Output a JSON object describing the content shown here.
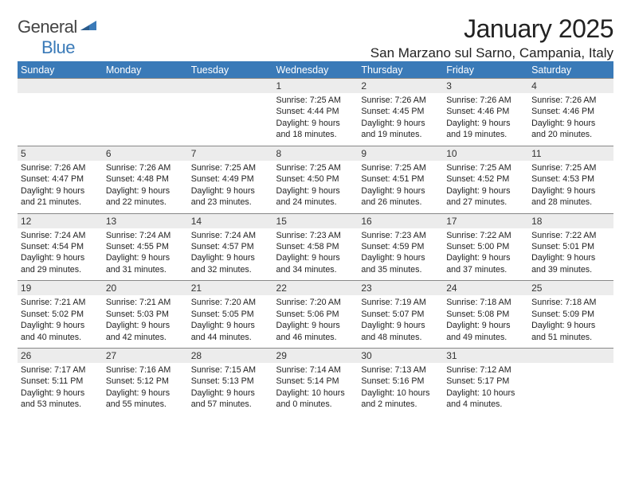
{
  "logo": {
    "text1": "General",
    "text2": "Blue"
  },
  "title": "January 2025",
  "location": "San Marzano sul Sarno, Campania, Italy",
  "colors": {
    "brand": "#3a7ab8",
    "daynum_bg": "#ececec",
    "text": "#222222",
    "logo_gray": "#444444"
  },
  "dow": [
    "Sunday",
    "Monday",
    "Tuesday",
    "Wednesday",
    "Thursday",
    "Friday",
    "Saturday"
  ],
  "weeks": [
    [
      null,
      null,
      null,
      {
        "n": "1",
        "sr": "7:25 AM",
        "ss": "4:44 PM",
        "dh": "9",
        "dm": "18"
      },
      {
        "n": "2",
        "sr": "7:26 AM",
        "ss": "4:45 PM",
        "dh": "9",
        "dm": "19"
      },
      {
        "n": "3",
        "sr": "7:26 AM",
        "ss": "4:46 PM",
        "dh": "9",
        "dm": "19"
      },
      {
        "n": "4",
        "sr": "7:26 AM",
        "ss": "4:46 PM",
        "dh": "9",
        "dm": "20"
      }
    ],
    [
      {
        "n": "5",
        "sr": "7:26 AM",
        "ss": "4:47 PM",
        "dh": "9",
        "dm": "21"
      },
      {
        "n": "6",
        "sr": "7:26 AM",
        "ss": "4:48 PM",
        "dh": "9",
        "dm": "22"
      },
      {
        "n": "7",
        "sr": "7:25 AM",
        "ss": "4:49 PM",
        "dh": "9",
        "dm": "23"
      },
      {
        "n": "8",
        "sr": "7:25 AM",
        "ss": "4:50 PM",
        "dh": "9",
        "dm": "24"
      },
      {
        "n": "9",
        "sr": "7:25 AM",
        "ss": "4:51 PM",
        "dh": "9",
        "dm": "26"
      },
      {
        "n": "10",
        "sr": "7:25 AM",
        "ss": "4:52 PM",
        "dh": "9",
        "dm": "27"
      },
      {
        "n": "11",
        "sr": "7:25 AM",
        "ss": "4:53 PM",
        "dh": "9",
        "dm": "28"
      }
    ],
    [
      {
        "n": "12",
        "sr": "7:24 AM",
        "ss": "4:54 PM",
        "dh": "9",
        "dm": "29"
      },
      {
        "n": "13",
        "sr": "7:24 AM",
        "ss": "4:55 PM",
        "dh": "9",
        "dm": "31"
      },
      {
        "n": "14",
        "sr": "7:24 AM",
        "ss": "4:57 PM",
        "dh": "9",
        "dm": "32"
      },
      {
        "n": "15",
        "sr": "7:23 AM",
        "ss": "4:58 PM",
        "dh": "9",
        "dm": "34"
      },
      {
        "n": "16",
        "sr": "7:23 AM",
        "ss": "4:59 PM",
        "dh": "9",
        "dm": "35"
      },
      {
        "n": "17",
        "sr": "7:22 AM",
        "ss": "5:00 PM",
        "dh": "9",
        "dm": "37"
      },
      {
        "n": "18",
        "sr": "7:22 AM",
        "ss": "5:01 PM",
        "dh": "9",
        "dm": "39"
      }
    ],
    [
      {
        "n": "19",
        "sr": "7:21 AM",
        "ss": "5:02 PM",
        "dh": "9",
        "dm": "40"
      },
      {
        "n": "20",
        "sr": "7:21 AM",
        "ss": "5:03 PM",
        "dh": "9",
        "dm": "42"
      },
      {
        "n": "21",
        "sr": "7:20 AM",
        "ss": "5:05 PM",
        "dh": "9",
        "dm": "44"
      },
      {
        "n": "22",
        "sr": "7:20 AM",
        "ss": "5:06 PM",
        "dh": "9",
        "dm": "46"
      },
      {
        "n": "23",
        "sr": "7:19 AM",
        "ss": "5:07 PM",
        "dh": "9",
        "dm": "48"
      },
      {
        "n": "24",
        "sr": "7:18 AM",
        "ss": "5:08 PM",
        "dh": "9",
        "dm": "49"
      },
      {
        "n": "25",
        "sr": "7:18 AM",
        "ss": "5:09 PM",
        "dh": "9",
        "dm": "51"
      }
    ],
    [
      {
        "n": "26",
        "sr": "7:17 AM",
        "ss": "5:11 PM",
        "dh": "9",
        "dm": "53"
      },
      {
        "n": "27",
        "sr": "7:16 AM",
        "ss": "5:12 PM",
        "dh": "9",
        "dm": "55"
      },
      {
        "n": "28",
        "sr": "7:15 AM",
        "ss": "5:13 PM",
        "dh": "9",
        "dm": "57"
      },
      {
        "n": "29",
        "sr": "7:14 AM",
        "ss": "5:14 PM",
        "dh": "10",
        "dm": "0"
      },
      {
        "n": "30",
        "sr": "7:13 AM",
        "ss": "5:16 PM",
        "dh": "10",
        "dm": "2"
      },
      {
        "n": "31",
        "sr": "7:12 AM",
        "ss": "5:17 PM",
        "dh": "10",
        "dm": "4"
      },
      null
    ]
  ],
  "labels": {
    "sunrise": "Sunrise:",
    "sunset": "Sunset:",
    "daylight": "Daylight:",
    "hours": "hours",
    "and": "and",
    "minutes": "minutes."
  }
}
